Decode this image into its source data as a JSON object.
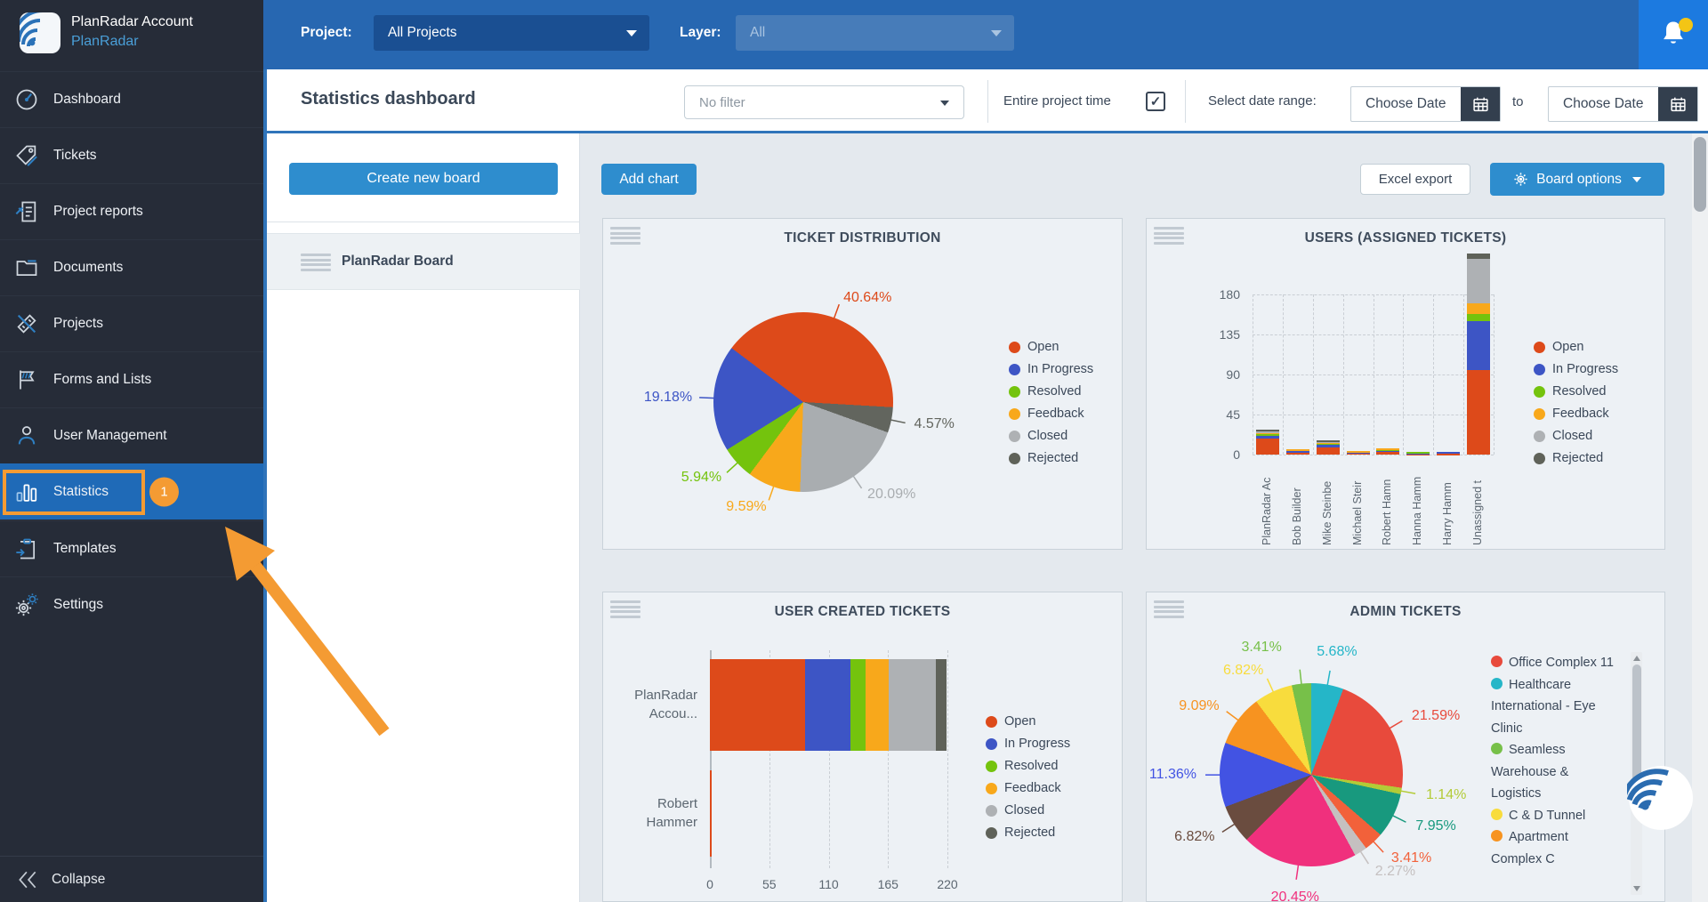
{
  "sidebar": {
    "account_title": "PlanRadar Account",
    "account_name": "PlanRadar",
    "items": [
      {
        "label": "Dashboard"
      },
      {
        "label": "Tickets"
      },
      {
        "label": "Project reports"
      },
      {
        "label": "Documents"
      },
      {
        "label": "Projects"
      },
      {
        "label": "Forms and Lists"
      },
      {
        "label": "User Management"
      },
      {
        "label": "Statistics",
        "active": true,
        "badge": "1"
      },
      {
        "label": "Templates"
      },
      {
        "label": "Settings"
      }
    ],
    "collapse_label": "Collapse"
  },
  "topbar": {
    "project_label": "Project:",
    "project_value": "All Projects",
    "layer_label": "Layer:",
    "layer_value": "All"
  },
  "toolbar": {
    "title": "Statistics dashboard",
    "filter_value": "No filter",
    "entire_project_time_label": "Entire project time",
    "entire_project_time_checked": true,
    "check_glyph": "✓",
    "date_range_label": "Select date range:",
    "date_from_placeholder": "Choose Date",
    "to_label": "to",
    "date_to_placeholder": "Choose Date"
  },
  "actions": {
    "create_board": "Create new board",
    "add_chart": "Add chart",
    "excel_export": "Excel export",
    "board_options": "Board options"
  },
  "boards": {
    "selected_board": "PlanRadar Board"
  },
  "statuses": [
    {
      "name": "Open",
      "color": "#dd4a1a"
    },
    {
      "name": "In Progress",
      "color": "#3d55c5"
    },
    {
      "name": "Resolved",
      "color": "#74c30d"
    },
    {
      "name": "Feedback",
      "color": "#f8a81b"
    },
    {
      "name": "Closed",
      "color": "#aeb1b4"
    },
    {
      "name": "Rejected",
      "color": "#5f6259"
    }
  ],
  "accent_colors": {
    "orange_annotation": "#f49b33",
    "topbar_blue": "#2767b1",
    "button_blue": "#2e8dce",
    "active_item_blue": "#1f6ab7"
  },
  "chart_data": [
    {
      "type": "pie",
      "title": "TICKET DISTRIBUTION",
      "value_suffix": "%",
      "start_angle": -53,
      "slices": [
        {
          "label": "Open",
          "value": 40.64,
          "color": "#dd4a1a"
        },
        {
          "label": "Rejected",
          "value": 4.57,
          "color": "#62655e"
        },
        {
          "label": "Closed",
          "value": 20.09,
          "color": "#a9adb0"
        },
        {
          "label": "Feedback",
          "value": 9.59,
          "color": "#f8a81b"
        },
        {
          "label": "Resolved",
          "value": 5.94,
          "color": "#74c30d"
        },
        {
          "label": "In Progress",
          "value": 19.18,
          "color": "#3d55c5"
        }
      ],
      "legend": [
        "Open",
        "In Progress",
        "Resolved",
        "Feedback",
        "Closed",
        "Rejected"
      ],
      "legend_position": "right"
    },
    {
      "type": "stacked_bar_vertical",
      "title": "USERS (ASSIGNED TICKETS)",
      "categories": [
        "PlanRadar Ac",
        "Bob Builder",
        "Mike Steinbe",
        "Michael Steir",
        "Robert Hamn",
        "Hanna Hamm",
        "Harry Hamm",
        "Unassigned t"
      ],
      "series": [
        {
          "name": "Open",
          "color": "#dd4a1a",
          "values": [
            18,
            2,
            8,
            2,
            4,
            1,
            1,
            95
          ]
        },
        {
          "name": "In Progress",
          "color": "#3d55c5",
          "values": [
            3,
            3,
            3,
            1,
            1,
            1,
            2,
            55
          ]
        },
        {
          "name": "Resolved",
          "color": "#74c30d",
          "values": [
            2,
            0,
            2,
            0,
            1,
            1,
            0,
            8
          ]
        },
        {
          "name": "Feedback",
          "color": "#f8a81b",
          "values": [
            2,
            1,
            1,
            1,
            1,
            0,
            0,
            12
          ]
        },
        {
          "name": "Closed",
          "color": "#aeb1b4",
          "values": [
            1,
            0,
            1,
            0,
            0,
            0,
            0,
            50
          ]
        },
        {
          "name": "Rejected",
          "color": "#5f6259",
          "values": [
            2,
            0,
            1,
            0,
            0,
            0,
            0,
            6
          ]
        }
      ],
      "ylim": [
        0,
        180
      ],
      "yticks": [
        0,
        45,
        90,
        135,
        180
      ],
      "grid": true,
      "legend": [
        "Open",
        "In Progress",
        "Resolved",
        "Feedback",
        "Closed",
        "Rejected"
      ],
      "legend_position": "right"
    },
    {
      "type": "stacked_bar_horizontal",
      "title": "USER CREATED TICKETS",
      "categories": [
        "PlanRadar Accou...",
        "Robert Hammer"
      ],
      "series": [
        {
          "name": "Open",
          "color": "#dd4a1a",
          "values": [
            88,
            1
          ]
        },
        {
          "name": "In Progress",
          "color": "#3d55c5",
          "values": [
            42,
            0
          ]
        },
        {
          "name": "Resolved",
          "color": "#74c30d",
          "values": [
            14,
            0
          ]
        },
        {
          "name": "Feedback",
          "color": "#f8a81b",
          "values": [
            22,
            0
          ]
        },
        {
          "name": "Closed",
          "color": "#aeb1b4",
          "values": [
            43,
            0
          ]
        },
        {
          "name": "Rejected",
          "color": "#5f6259",
          "values": [
            10,
            0
          ]
        }
      ],
      "xlim": [
        0,
        220
      ],
      "xticks": [
        0,
        55,
        110,
        165,
        220
      ],
      "grid": true,
      "legend": [
        "Open",
        "In Progress",
        "Resolved",
        "Feedback",
        "Closed",
        "Rejected"
      ],
      "legend_position": "right"
    },
    {
      "type": "pie",
      "title": "ADMIN TICKETS",
      "value_suffix": "%",
      "start_angle": 0,
      "slices": [
        {
          "label": "Healthcare International - Eye Clinic",
          "value": 5.68,
          "color": "#25b6c8"
        },
        {
          "label": "Office Complex 11",
          "value": 21.59,
          "color": "#e84a3c"
        },
        {
          "label": "",
          "value": 1.14,
          "color": "#b3cb37"
        },
        {
          "label": "",
          "value": 7.95,
          "color": "#18997e"
        },
        {
          "label": "",
          "value": 3.41,
          "color": "#f2613a"
        },
        {
          "label": "",
          "value": 2.27,
          "color": "#c5c0c0"
        },
        {
          "label": "",
          "value": 20.45,
          "color": "#f0307d"
        },
        {
          "label": "",
          "value": 6.82,
          "color": "#6a4c3f"
        },
        {
          "label": "",
          "value": 11.36,
          "color": "#4253e3"
        },
        {
          "label": "Apartment Complex C",
          "value": 9.09,
          "color": "#f79320"
        },
        {
          "label": "C & D Tunnel",
          "value": 6.82,
          "color": "#f8dc3d"
        },
        {
          "label": "Seamless Warehouse & Logistics",
          "value": 3.41,
          "color": "#77c049"
        }
      ],
      "legend_projects": [
        {
          "label": "Office Complex 11",
          "color": "#e84a3c"
        },
        {
          "label": "Healthcare International - Eye Clinic",
          "color": "#25b6c8"
        },
        {
          "label": "Seamless Warehouse & Logistics",
          "color": "#77c049"
        },
        {
          "label": "C & D Tunnel",
          "color": "#f8dc3d"
        },
        {
          "label": "Apartment Complex C",
          "color": "#f79320"
        }
      ],
      "legend_position": "right"
    }
  ]
}
